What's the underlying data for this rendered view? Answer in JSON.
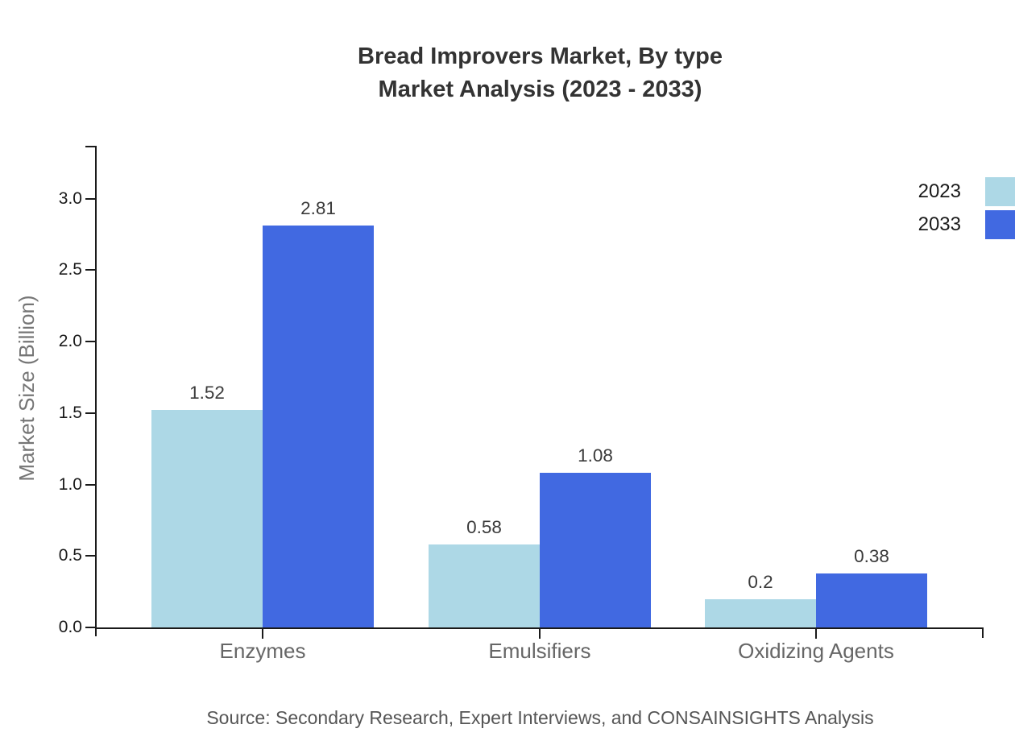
{
  "title": {
    "line1": "Bread Improvers Market, By type",
    "line2": "Market Analysis (2023 - 2033)"
  },
  "source": "Source: Secondary Research, Expert Interviews, and CONSAINSIGHTS Analysis",
  "chart_data": {
    "type": "bar",
    "title": "Bread Improvers Market, By type Market Analysis (2023 - 2033)",
    "categories": [
      "Enzymes",
      "Emulsifiers",
      "Oxidizing Agents"
    ],
    "series": [
      {
        "name": "2023",
        "color": "#ADD8E6",
        "values": [
          1.52,
          0.58,
          0.2
        ]
      },
      {
        "name": "2033",
        "color": "#4169E1",
        "values": [
          2.81,
          1.08,
          0.38
        ]
      }
    ],
    "value_labels": {
      "2023": [
        "1.52",
        "0.58",
        "0.2"
      ],
      "2033": [
        "2.81",
        "1.08",
        "0.38"
      ]
    },
    "xlabel": "",
    "ylabel": "Market Size (Billion)",
    "ylim": [
      0,
      3.37
    ],
    "yticks": [
      0.0,
      0.5,
      1.0,
      1.5,
      2.0,
      2.5,
      3.0
    ],
    "ytick_labels": [
      "0.0",
      "0.5",
      "1.0",
      "1.5",
      "2.0",
      "2.5",
      "3.0"
    ],
    "grid": false,
    "legend_position": "top-right",
    "axis_color": "#1a1a1a"
  }
}
